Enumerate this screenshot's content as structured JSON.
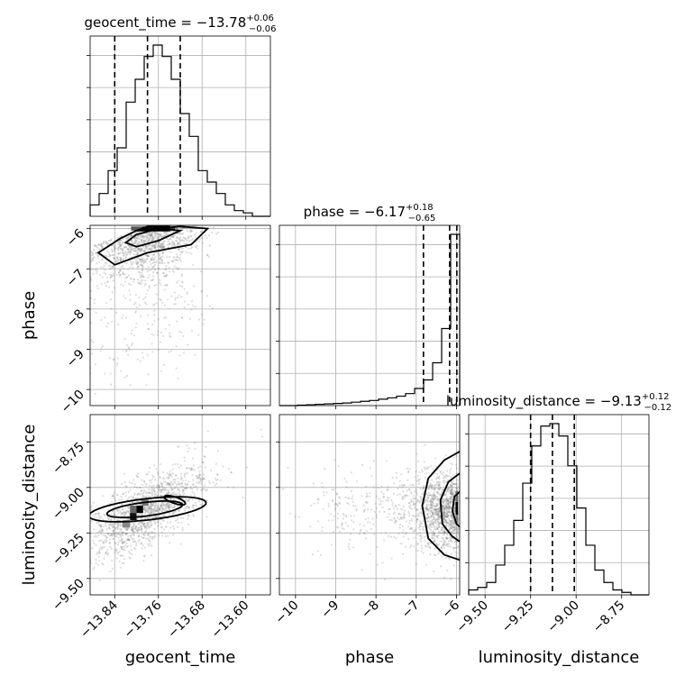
{
  "chart_data": {
    "type": "corner",
    "parameters": [
      "geocent_time",
      "phase",
      "luminosity_distance"
    ],
    "titles": [
      {
        "param": "geocent_time",
        "text": "geocent_time = −13.78",
        "sup": "+0.06",
        "sub": "−0.06"
      },
      {
        "param": "phase",
        "text": "phase = −6.17",
        "sup": "+0.18",
        "sub": "−0.65"
      },
      {
        "param": "luminosity_distance",
        "text": "luminosity_distance = −9.13",
        "sup": "+0.12",
        "sub": "−0.12"
      }
    ],
    "axis_labels": {
      "x": [
        "geocent_time",
        "phase",
        "luminosity_distance"
      ],
      "y": [
        "phase",
        "luminosity_distance"
      ]
    },
    "ranges": {
      "geocent_time": [
        -13.885,
        -13.555
      ],
      "phase": [
        -10.4,
        -5.92
      ],
      "luminosity_distance": [
        -9.59,
        -8.6
      ]
    },
    "tick_labels": {
      "geocent_time": [
        "−13.84",
        "−13.76",
        "−13.68",
        "−13.60"
      ],
      "phase_x": [
        "−10",
        "−9",
        "−8",
        "−7",
        "−6"
      ],
      "phase_y": [
        "−6",
        "−7",
        "−8",
        "−9",
        "−10"
      ],
      "luminosity_distance_x": [
        "−9.50",
        "−9.25",
        "−9.00",
        "−8.75"
      ],
      "luminosity_distance_y": [
        "−8.75",
        "−9.00",
        "−9.25",
        "−9.50"
      ]
    },
    "tick_values": {
      "geocent_time": [
        -13.84,
        -13.76,
        -13.68,
        -13.6
      ],
      "phase": [
        -10,
        -9,
        -8,
        -7,
        -6
      ],
      "luminosity_distance": [
        -9.5,
        -9.25,
        -9.0,
        -8.75
      ]
    },
    "quantiles": {
      "geocent_time": [
        -13.84,
        -13.78,
        -13.72
      ],
      "phase": [
        -6.82,
        -6.17,
        -5.99
      ],
      "luminosity_distance": [
        -9.25,
        -9.13,
        -9.01
      ]
    },
    "histograms": {
      "geocent_time": {
        "edges": [
          -13.885,
          -13.8685,
          -13.852,
          -13.8355,
          -13.819,
          -13.8025,
          -13.786,
          -13.7695,
          -13.753,
          -13.7365,
          -13.72,
          -13.7035,
          -13.687,
          -13.6705,
          -13.654,
          -13.6375,
          -13.621,
          -13.6045,
          -13.588,
          -13.5715,
          -13.555
        ],
        "counts": [
          1,
          2,
          4,
          6,
          10,
          12,
          14,
          15,
          14,
          12,
          9,
          7,
          4,
          3,
          2,
          1,
          0.5,
          0.3,
          0,
          0
        ]
      },
      "phase": {
        "edges": [
          -10.4,
          -10.176,
          -9.952,
          -9.728,
          -9.504,
          -9.28,
          -9.056,
          -8.832,
          -8.608,
          -8.384,
          -8.16,
          -7.936,
          -7.712,
          -7.488,
          -7.264,
          -7.04,
          -6.816,
          -6.592,
          -6.368,
          -6.144,
          -5.92
        ],
        "counts": [
          0,
          0,
          0.1,
          0.2,
          0.3,
          0.4,
          0.5,
          0.6,
          0.8,
          1.0,
          1.2,
          1.5,
          1.8,
          2.2,
          2.8,
          4,
          6,
          10,
          18,
          40
        ]
      },
      "luminosity_distance": {
        "edges": [
          -9.59,
          -9.5405,
          -9.491,
          -9.4415,
          -9.392,
          -9.3425,
          -9.293,
          -9.2435,
          -9.194,
          -9.1445,
          -9.095,
          -9.0455,
          -8.996,
          -8.9465,
          -8.897,
          -8.8475,
          -8.798,
          -8.7485,
          -8.699,
          -8.6495,
          -8.6
        ],
        "counts": [
          0.2,
          0.3,
          0.5,
          1.2,
          2.0,
          3.0,
          4.5,
          6.0,
          6.8,
          6.9,
          6.4,
          5.2,
          3.5,
          2.0,
          1.0,
          0.5,
          0.2,
          0.1,
          0,
          0
        ]
      }
    },
    "grid": true
  }
}
